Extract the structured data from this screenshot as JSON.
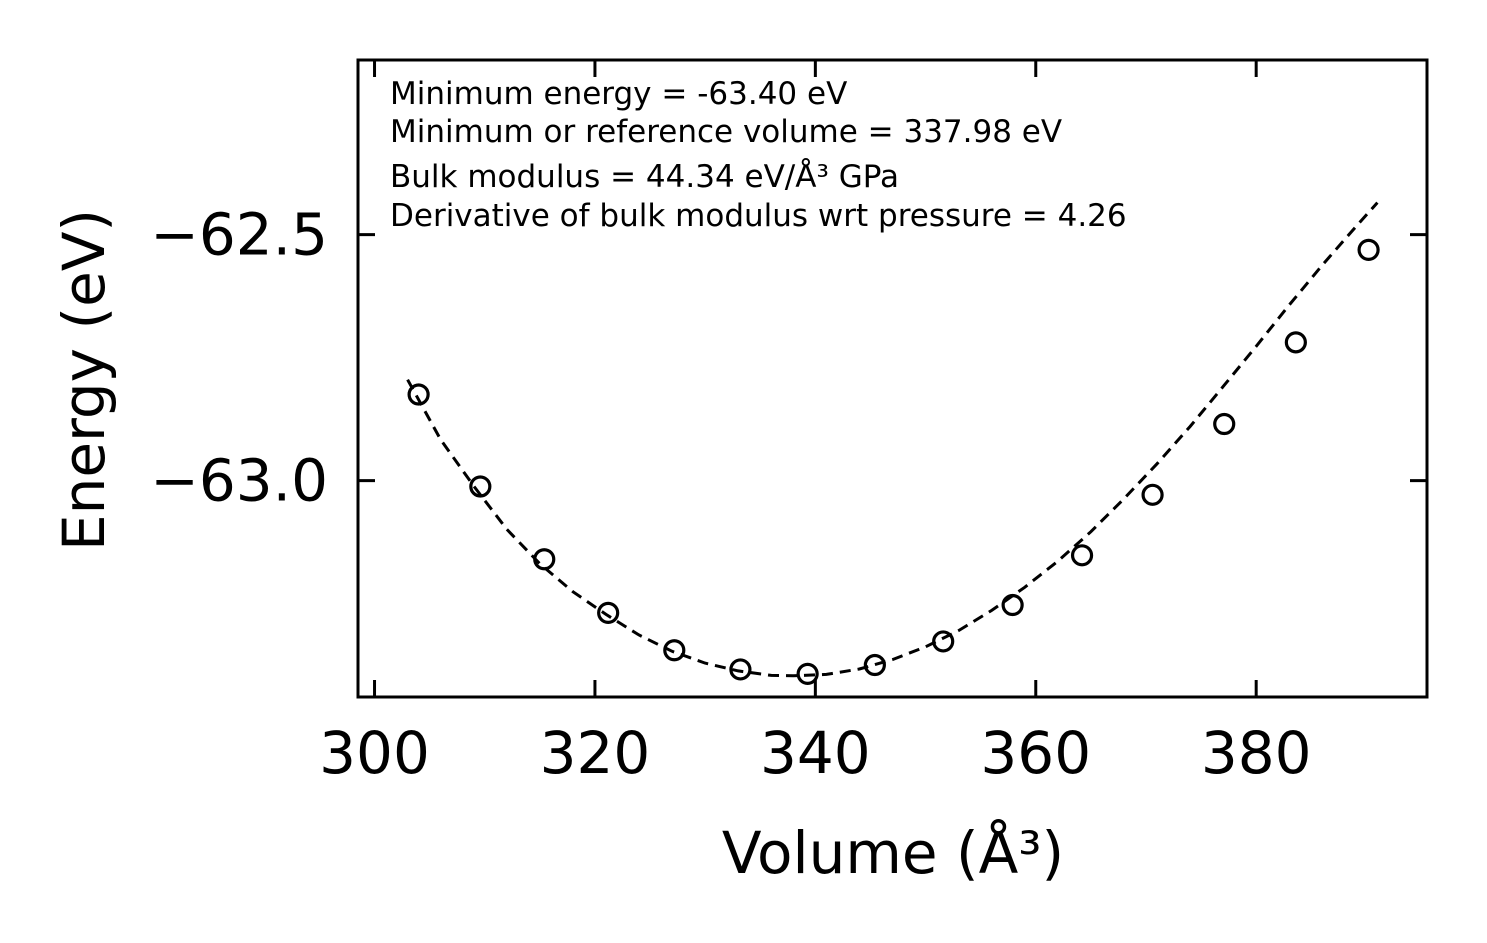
{
  "chart_data": {
    "type": "scatter",
    "title": "",
    "xlabel": "Volume (Å³)",
    "ylabel": "Energy (eV)",
    "xlim": [
      298.5,
      395.5
    ],
    "ylim": [
      -63.44,
      -62.145
    ],
    "x_ticks": [
      300,
      320,
      340,
      360,
      380
    ],
    "x_tick_labels": [
      "300",
      "320",
      "340",
      "360",
      "380"
    ],
    "y_ticks": [
      -63.0,
      -62.5
    ],
    "y_tick_labels": [
      "−63.0",
      "−62.5"
    ],
    "grid": false,
    "legend": "none",
    "series": [
      {
        "name": "calculated points",
        "style": "open-circle markers",
        "x": [
          304.0,
          309.6,
          315.4,
          321.2,
          327.2,
          333.2,
          339.3,
          345.4,
          351.6,
          357.9,
          364.2,
          370.6,
          377.1,
          383.6,
          390.2
        ],
        "y": [
          -62.825,
          -63.012,
          -63.16,
          -63.269,
          -63.345,
          -63.384,
          -63.393,
          -63.375,
          -63.327,
          -63.253,
          -63.152,
          -63.029,
          -62.885,
          -62.719,
          -62.531
        ]
      },
      {
        "name": "equation of state fit",
        "style": "dashed line",
        "x": [
          303.0,
          306.0,
          309.0,
          312.0,
          315.0,
          318.0,
          321.0,
          324.0,
          327.0,
          330.0,
          333.0,
          336.0,
          338.0,
          341.0,
          344.0,
          347.0,
          350.0,
          353.0,
          356.0,
          359.0,
          362.0,
          365.0,
          368.0,
          371.0,
          374.0,
          377.0,
          380.0,
          383.0,
          386.0,
          389.0,
          391.0
        ],
        "y": [
          -62.795,
          -62.917,
          -63.011,
          -63.099,
          -63.169,
          -63.226,
          -63.272,
          -63.314,
          -63.347,
          -63.371,
          -63.387,
          -63.396,
          -63.397,
          -63.394,
          -63.383,
          -63.364,
          -63.338,
          -63.305,
          -63.264,
          -63.217,
          -63.164,
          -63.104,
          -63.037,
          -62.966,
          -62.89,
          -62.809,
          -62.727,
          -62.643,
          -62.562,
          -62.485,
          -62.435
        ]
      }
    ],
    "annotations": [
      "Minimum energy = -63.40 eV",
      "Minimum or reference volume = 337.98 eV",
      "Bulk modulus = 44.34 eV/Å³ GPa",
      "Derivative of bulk modulus wrt pressure = 4.26"
    ],
    "colors": {
      "line": "#000000",
      "marker": "#000000",
      "background": "#ffffff"
    }
  }
}
